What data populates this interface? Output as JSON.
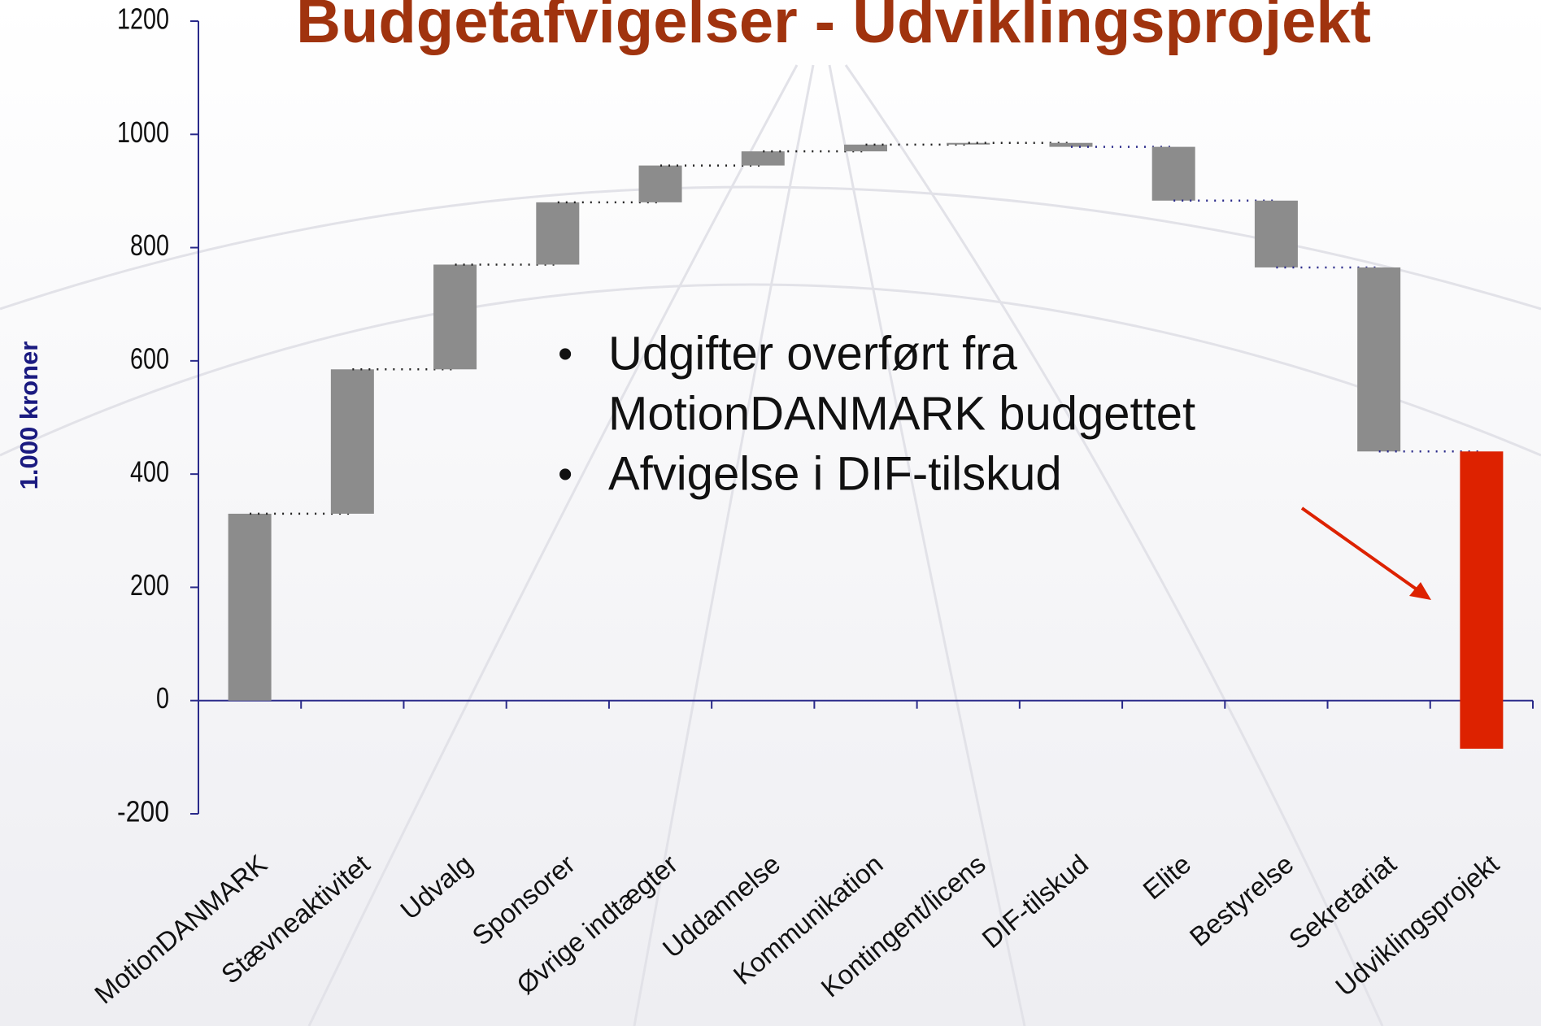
{
  "chart_data": {
    "type": "waterfall",
    "title": "Budgetafvigelser - Udviklingsprojekt",
    "y_label": "1.000 kroner",
    "categories": [
      "MotionDANMARK",
      "Stævneaktivitet",
      "Udvalg",
      "Sponsorer",
      "Øvrige indtægter",
      "Uddannelse",
      "Kommunikation",
      "Kontingent/licens",
      "DIF-tilskud",
      "Elite",
      "Bestyrelse",
      "Sekretariat",
      "Udviklingsprojekt"
    ],
    "values": [
      330,
      255,
      185,
      110,
      65,
      25,
      12,
      3,
      -7,
      -95,
      -118,
      -325,
      -525
    ],
    "colors": [
      "#8c8c8c",
      "#8c8c8c",
      "#8c8c8c",
      "#8c8c8c",
      "#8c8c8c",
      "#8c8c8c",
      "#8c8c8c",
      "#8c8c8c",
      "#8c8c8c",
      "#8c8c8c",
      "#8c8c8c",
      "#8c8c8c",
      "#dd2200"
    ],
    "ylim": [
      -200,
      1200
    ],
    "yticks": [
      -200,
      0,
      200,
      400,
      600,
      800,
      1000,
      1200
    ],
    "annotations": [
      [
        "Udgifter overført fra",
        "MotionDANMARK budgettet"
      ],
      [
        "Afvigelse i DIF-tilskud"
      ]
    ]
  }
}
